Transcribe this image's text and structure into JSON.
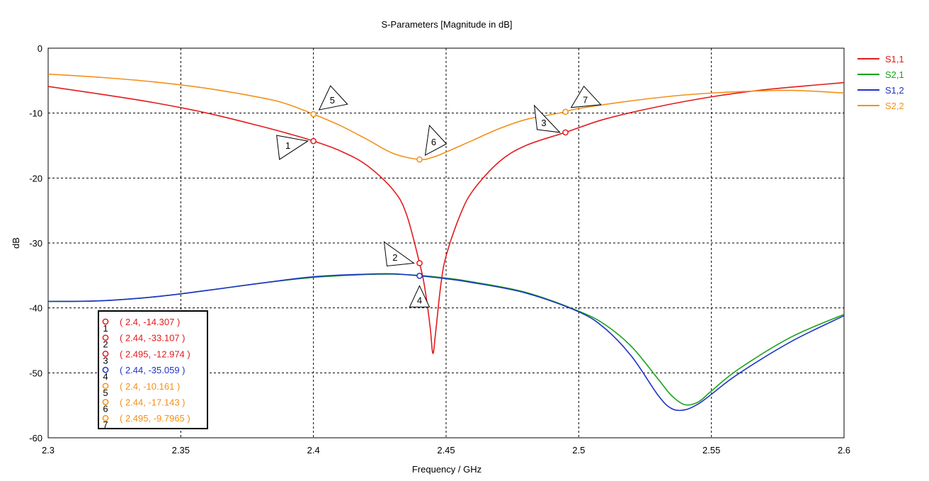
{
  "chart_data": {
    "type": "line",
    "title": "S-Parameters [Magnitude in dB]",
    "xlabel": "Frequency / GHz",
    "ylabel": "dB",
    "xlim": [
      2.3,
      2.6
    ],
    "ylim": [
      -60,
      0
    ],
    "xticks": [
      2.3,
      2.35,
      2.4,
      2.45,
      2.5,
      2.55,
      2.6
    ],
    "xtick_labels": [
      "2.3",
      "2.35",
      "2.4",
      "2.45",
      "2.5",
      "2.55",
      "2.6"
    ],
    "yticks": [
      0,
      -10,
      -20,
      -30,
      -40,
      -50,
      -60
    ],
    "ytick_labels": [
      "0",
      "-10",
      "-20",
      "-30",
      "-40",
      "-50",
      "-60"
    ],
    "grid": true,
    "legend_position": "top-right",
    "series": [
      {
        "name": "S1,1",
        "color": "#e31a1c",
        "x": [
          2.3,
          2.32,
          2.34,
          2.36,
          2.38,
          2.39,
          2.4,
          2.41,
          2.42,
          2.43,
          2.435,
          2.44,
          2.442,
          2.444,
          2.445,
          2.446,
          2.448,
          2.45,
          2.455,
          2.46,
          2.47,
          2.48,
          2.495,
          2.51,
          2.53,
          2.55,
          2.57,
          2.6
        ],
        "values": [
          -5.9,
          -7.1,
          -8.4,
          -10.0,
          -12.0,
          -13.1,
          -14.3,
          -15.8,
          -18.0,
          -21.8,
          -25.5,
          -33.1,
          -37.0,
          -43.0,
          -47.0,
          -44.0,
          -36.5,
          -32.0,
          -26.0,
          -22.0,
          -17.5,
          -15.0,
          -12.97,
          -10.9,
          -9.0,
          -7.5,
          -6.4,
          -5.3
        ]
      },
      {
        "name": "S2,1",
        "color": "#17a317",
        "x": [
          2.3,
          2.32,
          2.34,
          2.36,
          2.38,
          2.4,
          2.42,
          2.43,
          2.44,
          2.45,
          2.46,
          2.48,
          2.5,
          2.51,
          2.52,
          2.53,
          2.535,
          2.54,
          2.545,
          2.55,
          2.56,
          2.58,
          2.6
        ],
        "values": [
          -39.0,
          -38.9,
          -38.3,
          -37.3,
          -36.2,
          -35.3,
          -34.85,
          -34.8,
          -35.0,
          -35.4,
          -36.0,
          -37.6,
          -40.5,
          -42.6,
          -46.0,
          -51.0,
          -53.5,
          -54.9,
          -54.5,
          -52.8,
          -49.5,
          -44.5,
          -41.0
        ]
      },
      {
        "name": "S1,2",
        "color": "#1f33c8",
        "x": [
          2.3,
          2.32,
          2.34,
          2.36,
          2.38,
          2.4,
          2.42,
          2.43,
          2.44,
          2.45,
          2.46,
          2.48,
          2.5,
          2.51,
          2.52,
          2.53,
          2.535,
          2.54,
          2.545,
          2.55,
          2.56,
          2.58,
          2.6
        ],
        "values": [
          -39.0,
          -38.9,
          -38.3,
          -37.3,
          -36.2,
          -35.2,
          -34.8,
          -34.75,
          -35.06,
          -35.5,
          -36.1,
          -37.7,
          -40.6,
          -43.2,
          -47.5,
          -53.5,
          -55.5,
          -55.7,
          -54.8,
          -53.3,
          -50.2,
          -45.2,
          -41.2
        ]
      },
      {
        "name": "S2,2",
        "color": "#f39019",
        "x": [
          2.3,
          2.32,
          2.34,
          2.36,
          2.38,
          2.39,
          2.4,
          2.41,
          2.42,
          2.43,
          2.44,
          2.445,
          2.45,
          2.46,
          2.47,
          2.48,
          2.49,
          2.495,
          2.5,
          2.52,
          2.54,
          2.56,
          2.58,
          2.6
        ],
        "values": [
          -4.0,
          -4.5,
          -5.2,
          -6.2,
          -7.6,
          -8.6,
          -10.16,
          -11.9,
          -14.0,
          -16.2,
          -17.14,
          -16.8,
          -16.0,
          -14.2,
          -12.4,
          -11.0,
          -10.2,
          -9.8,
          -9.3,
          -8.1,
          -7.2,
          -6.7,
          -6.5,
          -6.9
        ]
      }
    ],
    "markers": [
      {
        "id": "1",
        "series": "S1,1",
        "x": 2.4,
        "y": -14.307,
        "label": "( 2.4, -14.307 )"
      },
      {
        "id": "2",
        "series": "S1,1",
        "x": 2.44,
        "y": -33.107,
        "label": "( 2.44, -33.107 )"
      },
      {
        "id": "3",
        "series": "S1,1",
        "x": 2.495,
        "y": -12.974,
        "label": "( 2.495, -12.974 )"
      },
      {
        "id": "4",
        "series": "S1,2",
        "x": 2.44,
        "y": -35.059,
        "label": "( 2.44, -35.059 )"
      },
      {
        "id": "5",
        "series": "S2,2",
        "x": 2.4,
        "y": -10.161,
        "label": "( 2.4, -10.161 )"
      },
      {
        "id": "6",
        "series": "S2,2",
        "x": 2.44,
        "y": -17.143,
        "label": "( 2.44, -17.143 )"
      },
      {
        "id": "7",
        "series": "S2,2",
        "x": 2.495,
        "y": -9.7965,
        "label": "( 2.495, -9.7965 )"
      }
    ]
  }
}
